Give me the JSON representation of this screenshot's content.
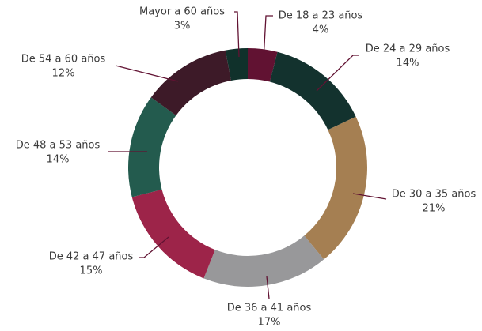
{
  "chart_data": {
    "type": "donut",
    "categories": [
      "De 18 a 23 años",
      "De 24 a 29 años",
      "De 30 a 35 años",
      "De 36 a 41 años",
      "De 42 a 47 años",
      "De 48 a 53 años",
      "De 54 a 60 años",
      "Mayor a 60 años"
    ],
    "values": [
      4,
      14,
      21,
      17,
      15,
      14,
      12,
      3
    ],
    "value_labels": [
      "4%",
      "14%",
      "21%",
      "17%",
      "15%",
      "14%",
      "12%",
      "3%"
    ],
    "colors": [
      "#611232",
      "#13322e",
      "#a57f52",
      "#98989a",
      "#9d2449",
      "#235b4e",
      "#3d1a28",
      "#10312b"
    ]
  }
}
